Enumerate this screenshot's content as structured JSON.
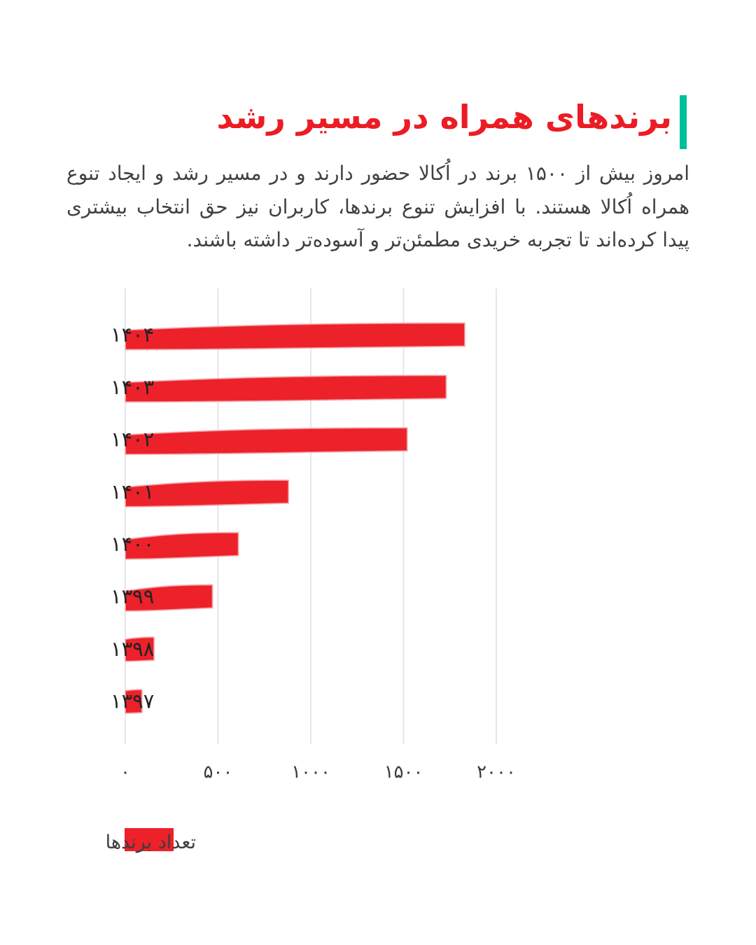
{
  "accent_color": "#00BE9C",
  "title": {
    "text": "برندهای همراه در مسیر رشد",
    "color": "#EC1C24"
  },
  "paragraph": "امروز بیش از ۱۵۰۰ برند در اُکالا حضور دارند و در مسیر رشد و ایجاد تنوع همراه اُکالا هستند. با افزایش تنوع برندها، کاربران نیز حق انتخاب بیشتری پیدا کرده‌اند تا تجربه خریدی مطمئن‌تر و آسوده‌تر داشته باشند.",
  "chart_data": {
    "type": "bar",
    "orientation": "horizontal",
    "title": "",
    "xlabel": "",
    "ylabel": "",
    "categories": [
      "۱۴۰۴",
      "۱۴۰۳",
      "۱۴۰۲",
      "۱۴۰۱",
      "۱۴۰۰",
      "۱۳۹۹",
      "۱۳۹۸",
      "۱۳۹۷"
    ],
    "values": [
      1830,
      1730,
      1520,
      880,
      610,
      470,
      155,
      90
    ],
    "series_name": "تعداد برندها",
    "xlim": [
      0,
      2000
    ],
    "x_ticks": {
      "labels": [
        "۰",
        "۵۰۰",
        "۱۰۰۰",
        "۱۵۰۰",
        "۲۰۰۰"
      ],
      "values": [
        0,
        500,
        1000,
        1500,
        2000
      ]
    },
    "grid": true,
    "bar_color": "#EC2129",
    "bar_halo_color": "#F6AEB4",
    "legend": {
      "position": "bottom",
      "swatch_color": "#EC2129",
      "label": "تعداد برندها"
    }
  }
}
